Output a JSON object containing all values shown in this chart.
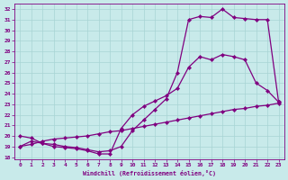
{
  "xlabel": "Windchill (Refroidissement éolien,°C)",
  "bg_color": "#c8eaea",
  "line_color": "#800080",
  "grid_color": "#a8d4d4",
  "xlim": [
    -0.5,
    23.5
  ],
  "ylim": [
    17.8,
    32.5
  ],
  "xticks": [
    0,
    1,
    2,
    3,
    4,
    5,
    6,
    7,
    8,
    9,
    10,
    11,
    12,
    13,
    14,
    15,
    16,
    17,
    18,
    19,
    20,
    21,
    22,
    23
  ],
  "yticks": [
    18,
    19,
    20,
    21,
    22,
    23,
    24,
    25,
    26,
    27,
    28,
    29,
    30,
    31,
    32
  ],
  "curve_top_x": [
    0,
    1,
    2,
    3,
    4,
    5,
    6,
    7,
    8,
    9,
    10,
    11,
    12,
    13,
    14,
    15,
    16,
    17,
    18,
    19,
    20,
    21,
    22,
    23
  ],
  "curve_top_y": [
    19.0,
    19.5,
    19.3,
    19.2,
    19.0,
    18.9,
    18.7,
    18.5,
    18.6,
    19.0,
    20.5,
    21.5,
    22.5,
    23.5,
    26.0,
    31.0,
    31.3,
    31.2,
    32.0,
    31.2,
    31.1,
    31.0,
    31.0,
    23.2
  ],
  "curve_mid_x": [
    0,
    1,
    2,
    3,
    4,
    5,
    6,
    7,
    8,
    9,
    10,
    11,
    12,
    13,
    14,
    15,
    16,
    17,
    18,
    19,
    20,
    21,
    22,
    23
  ],
  "curve_mid_y": [
    20.0,
    19.8,
    19.3,
    19.0,
    18.9,
    18.8,
    18.6,
    18.3,
    18.3,
    20.7,
    22.0,
    22.8,
    23.3,
    23.8,
    24.5,
    26.5,
    27.5,
    27.2,
    27.7,
    27.5,
    27.2,
    25.0,
    24.3,
    23.2
  ],
  "curve_bot_x": [
    0,
    1,
    2,
    3,
    4,
    5,
    6,
    7,
    8,
    9,
    10,
    11,
    12,
    13,
    14,
    15,
    16,
    17,
    18,
    19,
    20,
    21,
    22,
    23
  ],
  "curve_bot_y": [
    19.0,
    19.2,
    19.5,
    19.7,
    19.8,
    19.9,
    20.0,
    20.2,
    20.4,
    20.5,
    20.7,
    20.9,
    21.1,
    21.3,
    21.5,
    21.7,
    21.9,
    22.1,
    22.3,
    22.5,
    22.6,
    22.8,
    22.9,
    23.1
  ]
}
